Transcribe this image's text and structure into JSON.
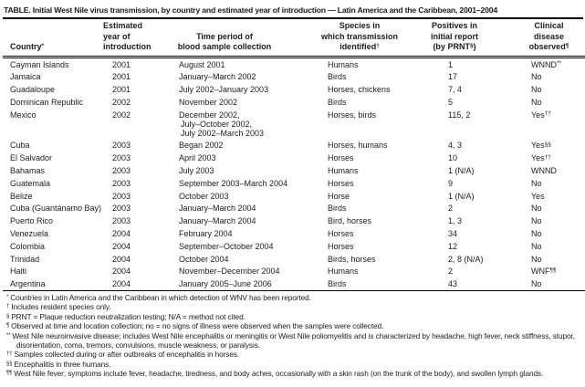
{
  "title": "TABLE. Initial West Nile virus transmission, by country and estimated year of introduction — Latin America and the Caribbean, 2001–2004",
  "table": {
    "headers": {
      "country": {
        "text": "Country",
        "sup": "*"
      },
      "year": {
        "lines": [
          "Estimated",
          "year of",
          "introduction"
        ]
      },
      "period": {
        "lines": [
          "Time period of",
          "blood sample collection"
        ]
      },
      "species": {
        "line1": "Species in",
        "line2": "which transmission",
        "line3": "identified",
        "sup": "†"
      },
      "positives": {
        "line1": "Positives in",
        "line2": "initial report",
        "line3_pre": "(by PRNT",
        "sup": "§",
        "line3_post": ")"
      },
      "clinical": {
        "line1": "Clinical",
        "line2": "disease",
        "line3": "observed",
        "sup": "¶"
      }
    },
    "rows": [
      {
        "country": "Cayman Islands",
        "year": "2001",
        "period": [
          "August 2001"
        ],
        "species": "Humans",
        "positives": "1",
        "clinical": "WNND",
        "clinical_sup": "**"
      },
      {
        "country": "Jamaica",
        "year": "2001",
        "period": [
          "January–March 2002"
        ],
        "species": "Birds",
        "positives": "17",
        "clinical": "No",
        "clinical_sup": ""
      },
      {
        "country": "Guadaloupe",
        "year": "2001",
        "period": [
          "July 2002–January 2003"
        ],
        "species": "Horses, chickens",
        "positives": "7, 4",
        "clinical": "No",
        "clinical_sup": ""
      },
      {
        "country": "Dominican Republic",
        "year": "2002",
        "period": [
          "November 2002"
        ],
        "species": "Birds",
        "positives": "5",
        "clinical": "No",
        "clinical_sup": ""
      },
      {
        "country": "Mexico",
        "year": "2002",
        "period": [
          "December 2002,",
          "July–October 2002,",
          "July 2002–March 2003"
        ],
        "species": "Horses, birds",
        "positives": "115, 2",
        "clinical": "Yes",
        "clinical_sup": "††"
      },
      {
        "country": "Cuba",
        "year": "2003",
        "period": [
          "Began 2002"
        ],
        "species": "Horses, humans",
        "positives": "4, 3",
        "clinical": "Yes",
        "clinical_sup": "§§"
      },
      {
        "country": "El Salvador",
        "year": "2003",
        "period": [
          "April 2003"
        ],
        "species": "Horses",
        "positives": "10",
        "clinical": "Yes",
        "clinical_sup": "††"
      },
      {
        "country": "Bahamas",
        "year": "2003",
        "period": [
          "July 2003"
        ],
        "species": "Humans",
        "positives": "1 (N/A)",
        "clinical": "WNND",
        "clinical_sup": ""
      },
      {
        "country": "Guatemala",
        "year": "2003",
        "period": [
          "September 2003–March 2004"
        ],
        "species": "Horses",
        "positives": "9",
        "clinical": "No",
        "clinical_sup": ""
      },
      {
        "country": "Belize",
        "year": "2003",
        "period": [
          "October 2003"
        ],
        "species": "Horse",
        "positives": "1 (N/A)",
        "clinical": "Yes",
        "clinical_sup": ""
      },
      {
        "country": "Cuba (Guantánamo Bay)",
        "year": "2003",
        "period": [
          "January–March 2004"
        ],
        "species": "Birds",
        "positives": "2",
        "clinical": "No",
        "clinical_sup": ""
      },
      {
        "country": "Puerto Rico",
        "year": "2003",
        "period": [
          "January–March 2004"
        ],
        "species": "Bird, horses",
        "positives": "1, 3",
        "clinical": "No",
        "clinical_sup": ""
      },
      {
        "country": "Venezuela",
        "year": "2004",
        "period": [
          "February 2004"
        ],
        "species": "Horses",
        "positives": "34",
        "clinical": "No",
        "clinical_sup": ""
      },
      {
        "country": "Colombia",
        "year": "2004",
        "period": [
          "September–October 2004"
        ],
        "species": "Horses",
        "positives": "12",
        "clinical": "No",
        "clinical_sup": ""
      },
      {
        "country": "Trinidad",
        "year": "2004",
        "period": [
          "October 2004"
        ],
        "species": "Birds, horses",
        "positives": "2, 8 (N/A)",
        "clinical": "No",
        "clinical_sup": ""
      },
      {
        "country": "Haiti",
        "year": "2004",
        "period": [
          "November–December 2004"
        ],
        "species": "Humans",
        "positives": "2",
        "clinical": "WNF",
        "clinical_sup": "¶¶"
      },
      {
        "country": "Argentina",
        "year": "2004",
        "period": [
          "January 2005–June 2006"
        ],
        "species": "Birds",
        "positives": "43",
        "clinical": "No",
        "clinical_sup": ""
      }
    ]
  },
  "footnotes": [
    {
      "symbol": "*",
      "text": "Countries in Latin America and the Caribbean in which detection of WNV has been reported."
    },
    {
      "symbol": "†",
      "text": "Includes resident species only."
    },
    {
      "symbol": "§",
      "text": "PRNT = Plaque reduction neutralization testing; N/A = method not cited."
    },
    {
      "symbol": "¶",
      "text": "Observed at time and location collection; no = no signs of illness were observed when the samples were collected."
    },
    {
      "symbol": "**",
      "text": "West Nile neuroinvasive disease; includes West Nile encephalitis or meningitis or West Nile poliomyelitis and is characterized by headache, high fever, neck stiffness, stupor, disorientation, coma, tremors, convulsions, muscle weakness, or paralysis."
    },
    {
      "symbol": "††",
      "text": "Samples collected during or after outbreaks of encephalitis in horses."
    },
    {
      "symbol": "§§",
      "text": "Encephalitis in three humans."
    },
    {
      "symbol": "¶¶",
      "text": "West Nile fever; symptoms include fever, headache, tiredness, and body aches, occasionally with a skin rash (on the trunk of the body), and swollen lymph glands."
    }
  ]
}
